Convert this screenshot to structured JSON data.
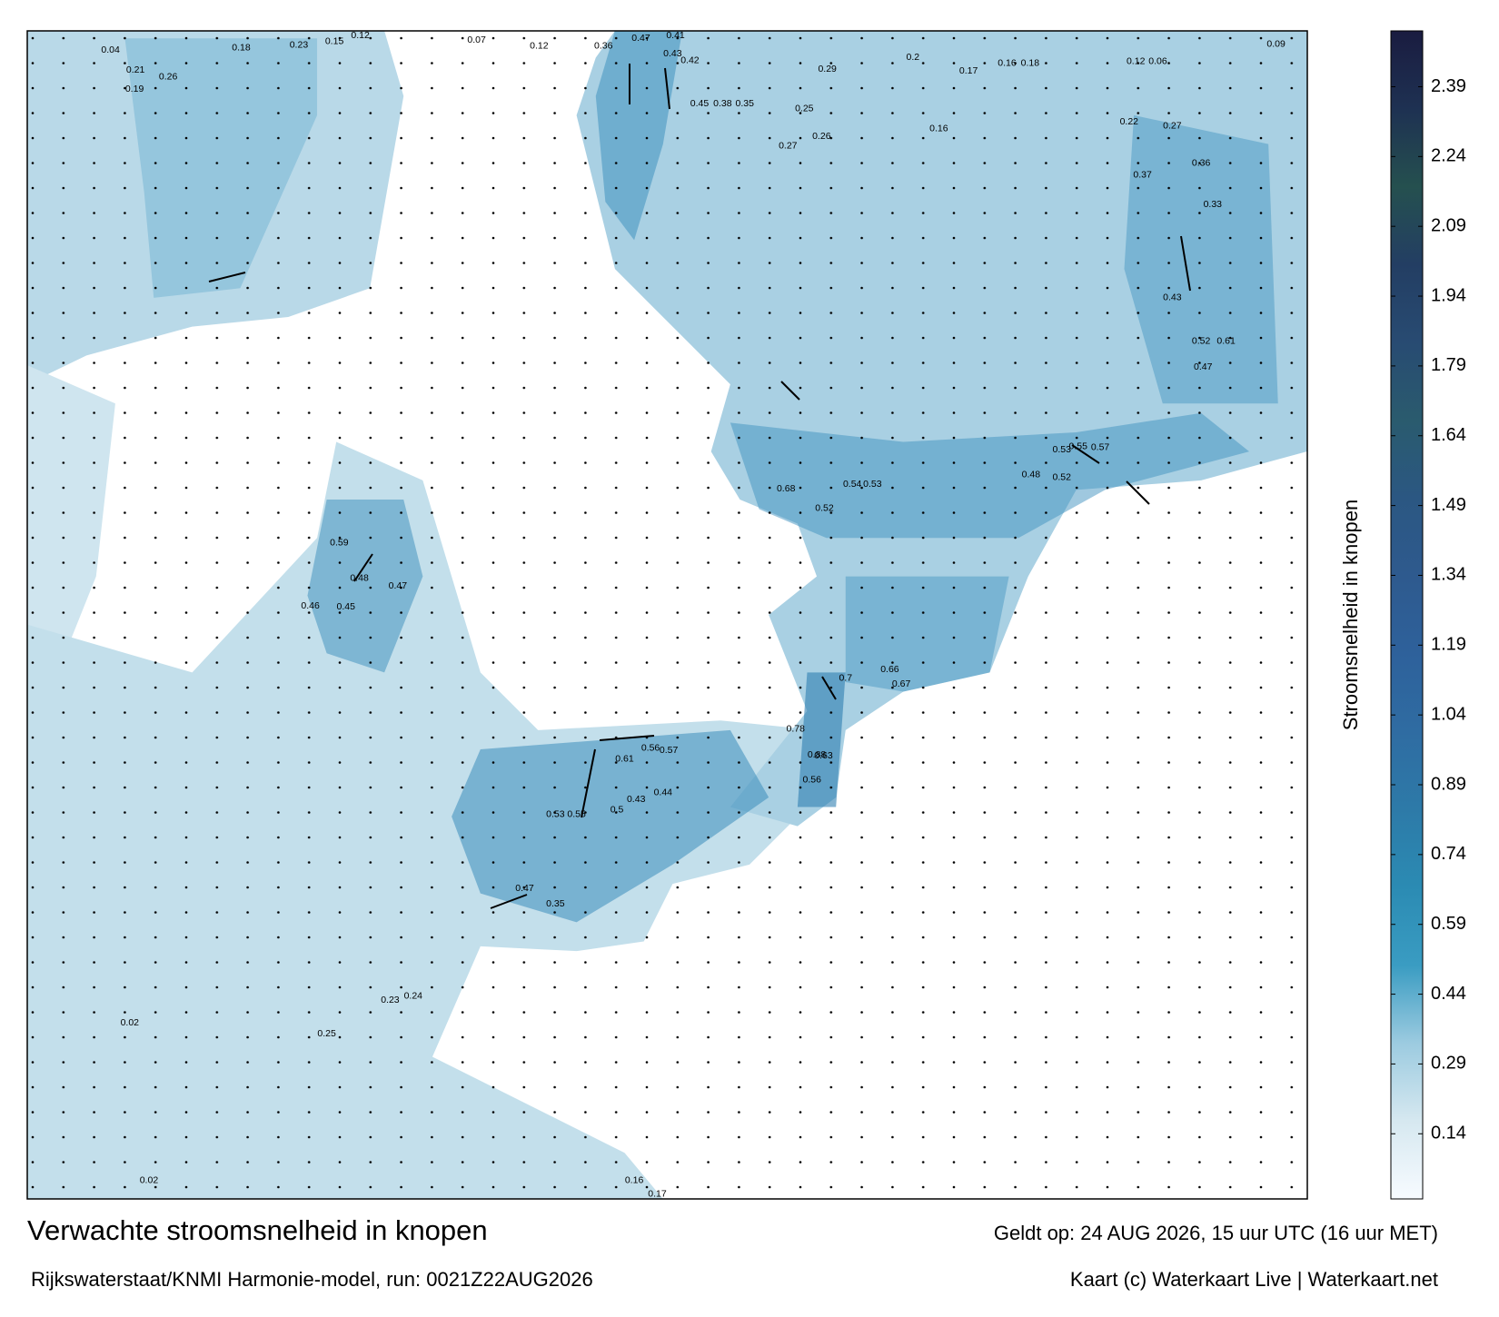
{
  "map": {
    "title": "Verwachte stroomsnelheid in knopen",
    "model_run": "Rijkswaterstaat/KNMI Harmonie-model, run: 0021Z22AUG2026",
    "valid_time": "Geldt op: 24 AUG 2026, 15 uur UTC (16 uur MET)",
    "credits": "Kaart (c) Waterkaart Live | Waterkaart.net",
    "speed_labels": [
      0.04,
      0.21,
      0.19,
      0.26,
      0.18,
      0.23,
      0.15,
      0.12,
      0.07,
      0.12,
      0.36,
      0.47,
      0.41,
      0.43,
      0.42,
      0.29,
      0.2,
      0.17,
      0.16,
      0.18,
      0.09,
      0.12,
      0.06,
      0.45,
      0.38,
      0.35,
      0.25,
      0.27,
      0.26,
      0.16,
      0.22,
      0.27,
      0.37,
      0.36,
      0.33,
      0.43,
      0.52,
      0.61,
      0.47,
      0.55,
      0.57,
      0.53,
      0.48,
      0.52,
      0.54,
      0.53,
      0.68,
      0.52,
      0.48,
      0.47,
      0.59,
      0.46,
      0.45,
      0.56,
      0.57,
      0.61,
      0.53,
      0.55,
      0.43,
      0.44,
      0.5,
      0.47,
      0.35,
      0.24,
      0.23,
      0.25,
      0.02,
      0.02,
      0.17,
      0.16,
      0.78,
      0.63,
      0.56,
      0.7,
      0.67,
      0.66,
      0.88
    ],
    "colorbar": {
      "label": "Stroomsnelheid in knopen",
      "clim": [
        0,
        2.51
      ],
      "ticks": [
        0.14,
        0.29,
        0.44,
        0.59,
        0.74,
        0.89,
        1.04,
        1.19,
        1.34,
        1.49,
        1.64,
        1.79,
        1.94,
        2.09,
        2.24,
        2.39
      ],
      "colors": [
        "#f7fbff",
        "#d6e8f0",
        "#9ccbe0",
        "#3a9cc2",
        "#2b8bb3",
        "#2d7aa8",
        "#2f6ca2",
        "#2e619b",
        "#2e5a8e",
        "#2b5782",
        "#2a5b6e",
        "#284b72",
        "#233e63",
        "#25504f",
        "#1e3152",
        "#1a1c40"
      ]
    }
  }
}
